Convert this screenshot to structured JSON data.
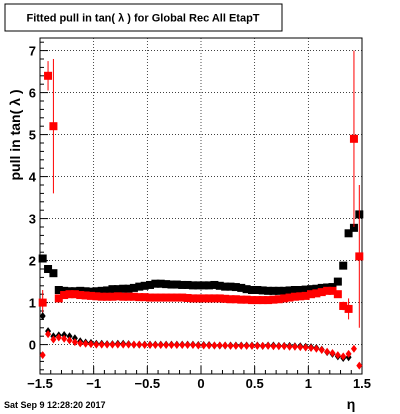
{
  "chart_data": {
    "type": "scatter",
    "title": "Fitted pull in tan( λ ) for Global Rec All EtapT",
    "xlabel": "η",
    "ylabel": "pull in tan( λ )",
    "xlim": [
      -1.5,
      1.5
    ],
    "ylim": [
      -0.7,
      7.3
    ],
    "x_ticks": [
      -1.5,
      -1,
      -0.5,
      0,
      0.5,
      1,
      1.5
    ],
    "x_tick_labels": [
      "−1.5",
      "−1",
      "−0.5",
      "0",
      "0.5",
      "1",
      "1.5"
    ],
    "y_ticks": [
      0,
      1,
      2,
      3,
      4,
      5,
      6,
      7
    ],
    "y_tick_labels": [
      "0",
      "1",
      "2",
      "3",
      "4",
      "5",
      "6",
      "7"
    ],
    "grid": true,
    "footer_date": "Sat Sep  9 12:28:20 2017",
    "series": [
      {
        "color": "#000000",
        "marker": "square",
        "x": [
          -1.475,
          -1.425,
          -1.375,
          -1.325,
          -1.275,
          -1.225,
          -1.175,
          -1.125,
          -1.075,
          -1.025,
          -0.975,
          -0.925,
          -0.875,
          -0.825,
          -0.775,
          -0.725,
          -0.675,
          -0.625,
          -0.575,
          -0.525,
          -0.475,
          -0.425,
          -0.375,
          -0.325,
          -0.275,
          -0.225,
          -0.175,
          -0.125,
          -0.075,
          -0.025,
          0.025,
          0.075,
          0.125,
          0.175,
          0.225,
          0.275,
          0.325,
          0.375,
          0.425,
          0.475,
          0.525,
          0.575,
          0.625,
          0.675,
          0.725,
          0.775,
          0.825,
          0.875,
          0.925,
          0.975,
          1.025,
          1.075,
          1.125,
          1.175,
          1.225,
          1.275,
          1.325,
          1.375,
          1.425,
          1.475
        ],
        "y": [
          2.05,
          1.8,
          1.7,
          1.3,
          1.28,
          1.27,
          1.27,
          1.28,
          1.27,
          1.26,
          1.27,
          1.28,
          1.29,
          1.32,
          1.32,
          1.33,
          1.33,
          1.35,
          1.38,
          1.4,
          1.42,
          1.45,
          1.45,
          1.44,
          1.43,
          1.43,
          1.42,
          1.42,
          1.41,
          1.41,
          1.41,
          1.41,
          1.42,
          1.4,
          1.38,
          1.38,
          1.37,
          1.35,
          1.32,
          1.3,
          1.3,
          1.29,
          1.28,
          1.28,
          1.28,
          1.28,
          1.29,
          1.3,
          1.3,
          1.31,
          1.32,
          1.33,
          1.35,
          1.36,
          1.37,
          1.5,
          1.88,
          2.65,
          2.78,
          3.1
        ]
      },
      {
        "color": "#ff0000",
        "marker": "square",
        "x": [
          -1.475,
          -1.425,
          -1.375,
          -1.325,
          -1.275,
          -1.225,
          -1.175,
          -1.125,
          -1.075,
          -1.025,
          -0.975,
          -0.925,
          -0.875,
          -0.825,
          -0.775,
          -0.725,
          -0.675,
          -0.625,
          -0.575,
          -0.525,
          -0.475,
          -0.425,
          -0.375,
          -0.325,
          -0.275,
          -0.225,
          -0.175,
          -0.125,
          -0.075,
          -0.025,
          0.025,
          0.075,
          0.125,
          0.175,
          0.225,
          0.275,
          0.325,
          0.375,
          0.425,
          0.475,
          0.525,
          0.575,
          0.625,
          0.675,
          0.725,
          0.775,
          0.825,
          0.875,
          0.925,
          0.975,
          1.025,
          1.075,
          1.125,
          1.175,
          1.225,
          1.275,
          1.325,
          1.375,
          1.425,
          1.475
        ],
        "y": [
          1.0,
          6.4,
          5.2,
          1.1,
          1.18,
          1.2,
          1.2,
          1.18,
          1.17,
          1.16,
          1.15,
          1.14,
          1.14,
          1.14,
          1.15,
          1.14,
          1.14,
          1.14,
          1.13,
          1.13,
          1.12,
          1.12,
          1.12,
          1.12,
          1.12,
          1.12,
          1.12,
          1.11,
          1.1,
          1.1,
          1.1,
          1.1,
          1.1,
          1.1,
          1.09,
          1.08,
          1.08,
          1.07,
          1.07,
          1.06,
          1.06,
          1.06,
          1.06,
          1.07,
          1.08,
          1.1,
          1.12,
          1.14,
          1.15,
          1.16,
          1.2,
          1.22,
          1.25,
          1.28,
          1.28,
          1.2,
          0.92,
          0.85,
          4.9,
          2.1
        ],
        "y_err": [
          0.3,
          0.35,
          1.6,
          0.05,
          0.03,
          0.03,
          0.03,
          0.03,
          0.03,
          0.03,
          0.03,
          0.03,
          0.03,
          0.03,
          0.03,
          0.03,
          0.03,
          0.03,
          0.03,
          0.03,
          0.03,
          0.03,
          0.03,
          0.03,
          0.03,
          0.03,
          0.03,
          0.03,
          0.03,
          0.03,
          0.03,
          0.03,
          0.03,
          0.03,
          0.03,
          0.03,
          0.03,
          0.03,
          0.03,
          0.03,
          0.03,
          0.03,
          0.03,
          0.03,
          0.03,
          0.03,
          0.03,
          0.03,
          0.03,
          0.03,
          0.03,
          0.03,
          0.03,
          0.03,
          0.03,
          0.05,
          0.1,
          0.25,
          2.1,
          1.7
        ]
      },
      {
        "color": "#000000",
        "marker": "diamond",
        "x": [
          -1.475,
          -1.425,
          -1.375,
          -1.325,
          -1.275,
          -1.225,
          -1.175,
          -1.125,
          -1.075,
          -1.025,
          -0.975,
          -0.925,
          -0.875,
          -0.825,
          -0.775,
          -0.725,
          -0.675,
          -0.625,
          -0.575,
          -0.525,
          -0.475,
          -0.425,
          -0.375,
          -0.325,
          -0.275,
          -0.225,
          -0.175,
          -0.125,
          -0.075,
          -0.025,
          0.025,
          0.075,
          0.125,
          0.175,
          0.225,
          0.275,
          0.325,
          0.375,
          0.425,
          0.475,
          0.525,
          0.575,
          0.625,
          0.675,
          0.725,
          0.775,
          0.825,
          0.875,
          0.925,
          0.975,
          1.025,
          1.075,
          1.125,
          1.175,
          1.225,
          1.275,
          1.325,
          1.375
        ],
        "y": [
          0.68,
          0.32,
          0.2,
          0.22,
          0.23,
          0.2,
          0.15,
          0.08,
          0.05,
          0.04,
          0.02,
          0.02,
          0.01,
          0.01,
          0.02,
          0.02,
          0.01,
          0.0,
          0.0,
          0.0,
          0.0,
          0.0,
          0.0,
          0.0,
          0.0,
          0.0,
          0.0,
          0.0,
          0.0,
          -0.01,
          -0.01,
          -0.01,
          -0.02,
          -0.02,
          -0.02,
          -0.02,
          -0.02,
          -0.02,
          -0.02,
          -0.02,
          -0.02,
          -0.03,
          -0.02,
          -0.02,
          -0.03,
          -0.03,
          -0.03,
          -0.04,
          -0.04,
          -0.05,
          -0.06,
          -0.08,
          -0.12,
          -0.18,
          -0.22,
          -0.28,
          -0.32,
          -0.3
        ]
      },
      {
        "color": "#ff0000",
        "marker": "diamond",
        "x": [
          -1.475,
          -1.425,
          -1.375,
          -1.325,
          -1.275,
          -1.225,
          -1.175,
          -1.125,
          -1.075,
          -1.025,
          -0.975,
          -0.925,
          -0.875,
          -0.825,
          -0.775,
          -0.725,
          -0.675,
          -0.625,
          -0.575,
          -0.525,
          -0.475,
          -0.425,
          -0.375,
          -0.325,
          -0.275,
          -0.225,
          -0.175,
          -0.125,
          -0.075,
          -0.025,
          0.025,
          0.075,
          0.125,
          0.175,
          0.225,
          0.275,
          0.325,
          0.375,
          0.425,
          0.475,
          0.525,
          0.575,
          0.625,
          0.675,
          0.725,
          0.775,
          0.825,
          0.875,
          0.925,
          0.975,
          1.025,
          1.075,
          1.125,
          1.175,
          1.225,
          1.275,
          1.325,
          1.375,
          1.425,
          1.475
        ],
        "y": [
          -0.25,
          0.25,
          0.12,
          0.17,
          0.14,
          0.1,
          0.06,
          0.03,
          0.02,
          0.01,
          0.0,
          0.0,
          0.0,
          0.0,
          0.0,
          0.0,
          0.0,
          0.0,
          0.0,
          -0.01,
          -0.01,
          -0.01,
          -0.01,
          -0.01,
          -0.01,
          -0.01,
          -0.01,
          -0.01,
          -0.01,
          -0.02,
          -0.02,
          -0.02,
          -0.02,
          -0.02,
          -0.02,
          -0.03,
          -0.03,
          -0.03,
          -0.03,
          -0.03,
          -0.03,
          -0.03,
          -0.03,
          -0.04,
          -0.04,
          -0.04,
          -0.05,
          -0.05,
          -0.06,
          -0.07,
          -0.08,
          -0.1,
          -0.13,
          -0.17,
          -0.2,
          -0.25,
          -0.28,
          -0.22,
          -0.1,
          -0.5
        ]
      }
    ]
  }
}
